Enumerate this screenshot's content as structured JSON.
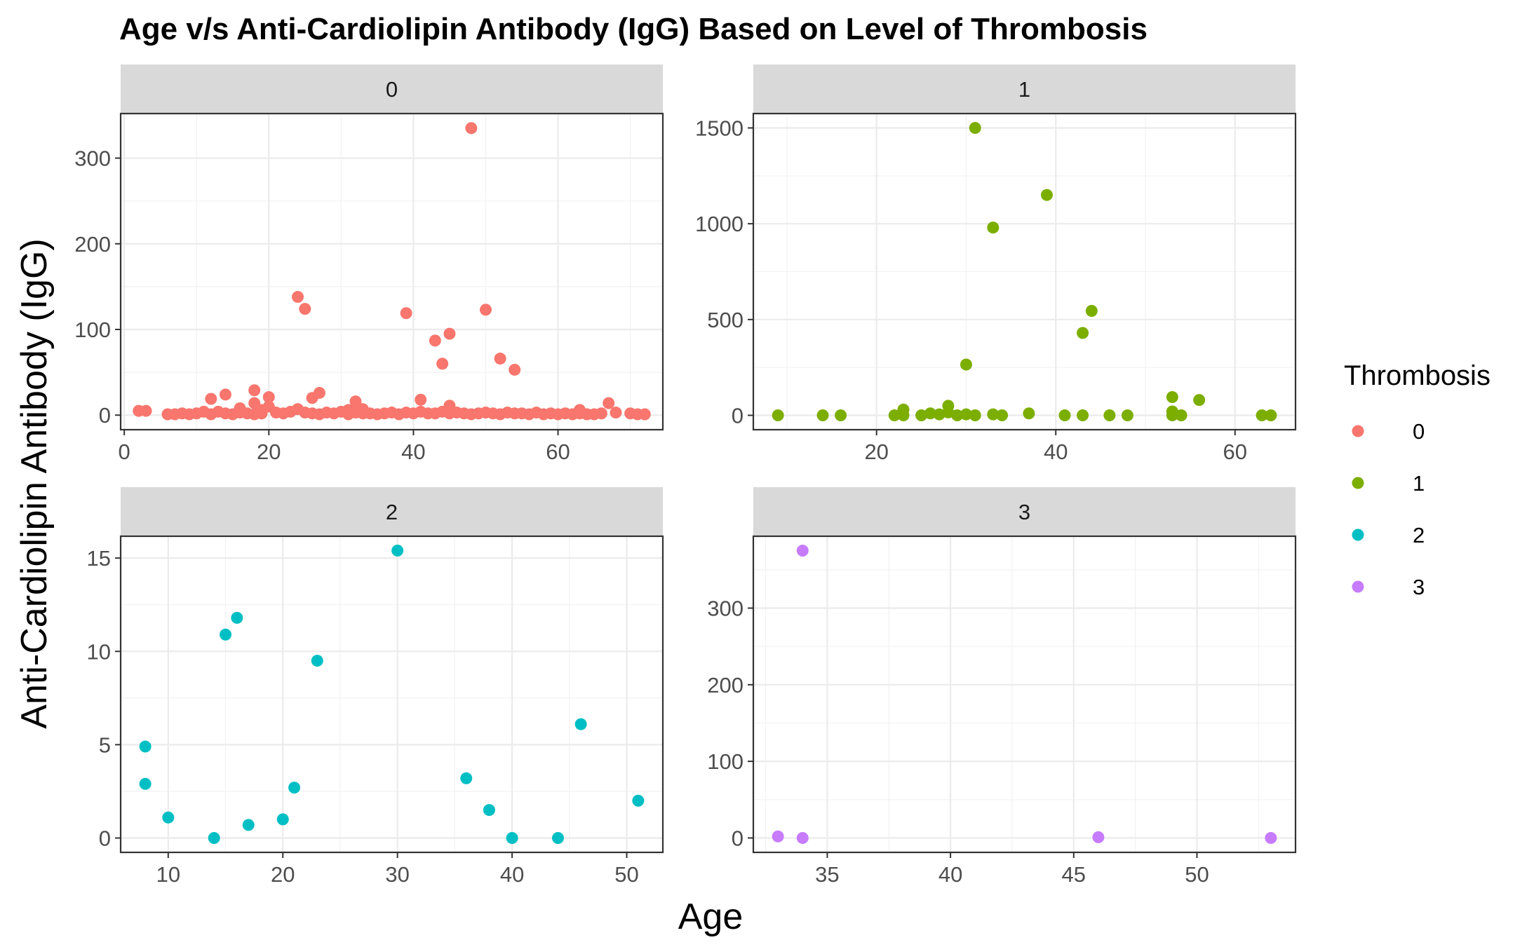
{
  "chart_data": {
    "type": "scatter",
    "title": "Age v/s Anti-Cardiolipin Antibody (IgG) Based on Level of Thrombosis",
    "xlabel": "Age",
    "ylabel": "Anti-Cardiolipin Antibody (IgG)",
    "grid": true,
    "legend": {
      "title": "Thrombosis",
      "placement": "right",
      "entries": [
        {
          "label": "0",
          "color": "#F8766D"
        },
        {
          "label": "1",
          "color": "#7CAE00"
        },
        {
          "label": "2",
          "color": "#00BFC4"
        },
        {
          "label": "3",
          "color": "#C77CFF"
        }
      ]
    },
    "facets": [
      {
        "strip": "0",
        "color": "#F8766D",
        "xlim": [
          -0.5,
          74.5
        ],
        "ylim": [
          -17,
          352
        ],
        "xticks": [
          0,
          20,
          40,
          60
        ],
        "yticks": [
          0,
          100,
          200,
          300
        ],
        "points": [
          [
            2,
            5
          ],
          [
            3,
            5
          ],
          [
            6,
            1
          ],
          [
            7,
            1
          ],
          [
            8,
            2
          ],
          [
            9,
            1
          ],
          [
            10,
            2
          ],
          [
            11,
            4
          ],
          [
            12,
            19
          ],
          [
            12,
            1
          ],
          [
            13,
            4
          ],
          [
            14,
            24
          ],
          [
            14,
            2
          ],
          [
            15,
            1
          ],
          [
            16,
            3
          ],
          [
            16,
            8
          ],
          [
            17,
            2
          ],
          [
            18,
            29
          ],
          [
            18,
            14
          ],
          [
            18,
            1
          ],
          [
            19,
            6
          ],
          [
            19,
            2
          ],
          [
            20,
            21
          ],
          [
            20,
            10
          ],
          [
            21,
            3
          ],
          [
            22,
            2
          ],
          [
            23,
            4
          ],
          [
            24,
            138
          ],
          [
            24,
            7
          ],
          [
            25,
            124
          ],
          [
            25,
            3
          ],
          [
            26,
            20
          ],
          [
            26,
            2
          ],
          [
            27,
            26
          ],
          [
            27,
            1
          ],
          [
            28,
            3
          ],
          [
            29,
            2
          ],
          [
            30,
            4
          ],
          [
            31,
            6
          ],
          [
            31,
            1
          ],
          [
            32,
            16
          ],
          [
            32,
            3
          ],
          [
            33,
            7
          ],
          [
            33,
            2
          ],
          [
            34,
            2
          ],
          [
            35,
            1
          ],
          [
            36,
            2
          ],
          [
            37,
            3
          ],
          [
            38,
            1
          ],
          [
            39,
            119
          ],
          [
            39,
            3
          ],
          [
            40,
            2
          ],
          [
            41,
            18
          ],
          [
            41,
            4
          ],
          [
            42,
            2
          ],
          [
            43,
            87
          ],
          [
            43,
            2
          ],
          [
            44,
            60
          ],
          [
            44,
            4
          ],
          [
            45,
            95
          ],
          [
            45,
            11
          ],
          [
            45,
            2
          ],
          [
            46,
            3
          ],
          [
            47,
            2
          ],
          [
            48,
            335
          ],
          [
            48,
            1
          ],
          [
            49,
            2
          ],
          [
            50,
            123
          ],
          [
            50,
            3
          ],
          [
            51,
            2
          ],
          [
            52,
            66
          ],
          [
            52,
            1
          ],
          [
            53,
            3
          ],
          [
            54,
            53
          ],
          [
            54,
            2
          ],
          [
            55,
            2
          ],
          [
            56,
            1
          ],
          [
            57,
            3
          ],
          [
            58,
            1
          ],
          [
            59,
            2
          ],
          [
            60,
            1
          ],
          [
            61,
            2
          ],
          [
            62,
            1
          ],
          [
            63,
            6
          ],
          [
            63,
            2
          ],
          [
            64,
            1
          ],
          [
            65,
            1
          ],
          [
            66,
            2
          ],
          [
            67,
            14
          ],
          [
            68,
            3
          ],
          [
            70,
            2
          ],
          [
            71,
            1
          ],
          [
            72,
            1
          ]
        ]
      },
      {
        "strip": "1",
        "color": "#7CAE00",
        "xlim": [
          6.25,
          66.75
        ],
        "ylim": [
          -75,
          1575
        ],
        "xticks": [
          20,
          40,
          60
        ],
        "yticks": [
          0,
          500,
          1000,
          1500
        ],
        "points": [
          [
            9,
            0
          ],
          [
            14,
            0
          ],
          [
            16,
            0
          ],
          [
            22,
            0
          ],
          [
            23,
            30
          ],
          [
            23,
            0
          ],
          [
            25,
            0
          ],
          [
            26,
            10
          ],
          [
            27,
            5
          ],
          [
            28,
            50
          ],
          [
            28,
            15
          ],
          [
            29,
            0
          ],
          [
            30,
            265
          ],
          [
            30,
            5
          ],
          [
            31,
            1500
          ],
          [
            31,
            0
          ],
          [
            33,
            980
          ],
          [
            33,
            5
          ],
          [
            34,
            0
          ],
          [
            37,
            10
          ],
          [
            39,
            1150
          ],
          [
            41,
            0
          ],
          [
            43,
            430
          ],
          [
            43,
            0
          ],
          [
            44,
            545
          ],
          [
            46,
            0
          ],
          [
            48,
            0
          ],
          [
            53,
            95
          ],
          [
            53,
            20
          ],
          [
            53,
            0
          ],
          [
            54,
            0
          ],
          [
            56,
            80
          ],
          [
            63,
            0
          ],
          [
            64,
            0
          ]
        ]
      },
      {
        "strip": "2",
        "color": "#00BFC4",
        "xlim": [
          5.85,
          53.15
        ],
        "ylim": [
          -0.77,
          16.17
        ],
        "xticks": [
          10,
          20,
          30,
          40,
          50
        ],
        "yticks": [
          0,
          5,
          10,
          15
        ],
        "points": [
          [
            8,
            4.9
          ],
          [
            8,
            2.9
          ],
          [
            10,
            1.1
          ],
          [
            14,
            0
          ],
          [
            15,
            10.9
          ],
          [
            16,
            11.8
          ],
          [
            17,
            0.7
          ],
          [
            20,
            1.0
          ],
          [
            21,
            2.7
          ],
          [
            23,
            9.5
          ],
          [
            30,
            15.4
          ],
          [
            36,
            3.2
          ],
          [
            38,
            1.5
          ],
          [
            40,
            0
          ],
          [
            44,
            0
          ],
          [
            46,
            6.1
          ],
          [
            51,
            2.0
          ]
        ]
      },
      {
        "strip": "3",
        "color": "#C77CFF",
        "xlim": [
          32.0,
          54.0
        ],
        "ylim": [
          -18.8,
          393.8
        ],
        "xticks": [
          35,
          40,
          45,
          50
        ],
        "yticks": [
          0,
          100,
          200,
          300
        ],
        "points": [
          [
            33,
            2
          ],
          [
            34,
            375
          ],
          [
            34,
            0
          ],
          [
            46,
            1
          ],
          [
            53,
            0
          ]
        ]
      }
    ]
  }
}
